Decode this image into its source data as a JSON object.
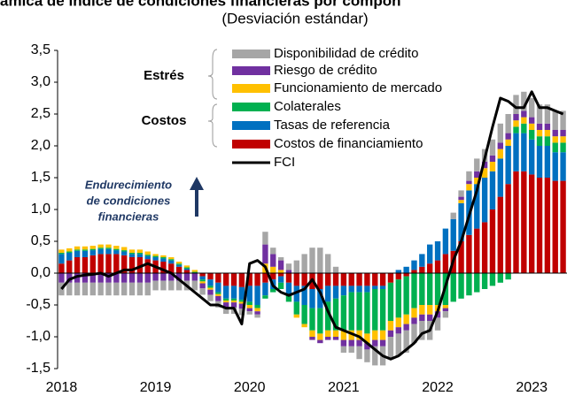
{
  "chart_data": {
    "type": "bar",
    "title": "ámica de índice de condiciones financieras por compon",
    "subtitle": "(Desviación estándar)",
    "group_labels": [
      "Estrés",
      "Costos"
    ],
    "annotation": [
      "Endurecimiento",
      "de condiciones",
      "financieras"
    ],
    "categories": [
      "2018",
      null,
      null,
      null,
      null,
      null,
      null,
      null,
      null,
      null,
      null,
      null,
      "2019",
      null,
      null,
      null,
      null,
      null,
      null,
      null,
      null,
      null,
      null,
      null,
      "2020",
      null,
      null,
      null,
      null,
      null,
      null,
      null,
      null,
      null,
      null,
      null,
      "2021",
      null,
      null,
      null,
      null,
      null,
      null,
      null,
      null,
      null,
      null,
      null,
      "2022",
      null,
      null,
      null,
      null,
      null,
      null,
      null,
      null,
      null,
      null,
      null,
      "2023",
      null,
      null,
      null,
      null
    ],
    "ylim": [
      -1.5,
      3.5
    ],
    "yticks": [
      {
        "value": -1.5,
        "label": "-1,5"
      },
      {
        "value": -1,
        "label": "-1,0"
      },
      {
        "value": -0.5,
        "label": "-0,5"
      },
      {
        "value": 0,
        "label": "0,0"
      },
      {
        "value": 0.5,
        "label": "0,5"
      },
      {
        "value": 1,
        "label": "1,0"
      },
      {
        "value": 1.5,
        "label": "1,5"
      },
      {
        "value": 2,
        "label": "2,0"
      },
      {
        "value": 2.5,
        "label": "2,5"
      },
      {
        "value": 3,
        "label": "3,0"
      },
      {
        "value": 3.5,
        "label": "3,5"
      }
    ],
    "series": [
      {
        "name": "Disponibilidad de crédito",
        "color": "#a6a6a6",
        "values": [
          -0.2,
          -0.2,
          -0.2,
          -0.2,
          -0.2,
          -0.2,
          -0.2,
          -0.2,
          -0.2,
          -0.2,
          -0.2,
          -0.2,
          -0.15,
          -0.15,
          -0.15,
          -0.15,
          -0.15,
          -0.15,
          -0.1,
          -0.1,
          -0.1,
          -0.1,
          -0.1,
          -0.1,
          -0.05,
          -0.05,
          0.2,
          0.1,
          0.05,
          0.1,
          0.2,
          0.3,
          0.4,
          0.4,
          0.3,
          0.1,
          -0.1,
          -0.1,
          -0.2,
          -0.2,
          -0.3,
          -0.3,
          -0.35,
          -0.35,
          -0.35,
          -0.3,
          -0.3,
          -0.3,
          -0.2,
          -0.1,
          0.1,
          0.1,
          0.15,
          0.2,
          0.2,
          0.25,
          0.3,
          0.3,
          0.3,
          0.3,
          0.3,
          0.3,
          0.3,
          0.3,
          0.3
        ]
      },
      {
        "name": "Riesgo de crédito",
        "color": "#7030a0",
        "values": [
          -0.15,
          -0.15,
          -0.15,
          -0.15,
          -0.15,
          -0.15,
          -0.15,
          -0.15,
          -0.15,
          -0.15,
          -0.15,
          -0.15,
          -0.12,
          -0.12,
          -0.12,
          -0.12,
          -0.12,
          -0.12,
          -0.08,
          -0.08,
          -0.08,
          -0.08,
          -0.08,
          -0.08,
          -0.05,
          -0.05,
          0.3,
          0.2,
          0.15,
          0.05,
          0,
          0,
          -0.05,
          -0.05,
          -0.05,
          -0.05,
          -0.1,
          -0.1,
          -0.1,
          -0.1,
          -0.1,
          -0.1,
          -0.1,
          -0.1,
          -0.1,
          -0.1,
          -0.1,
          -0.1,
          -0.1,
          -0.05,
          0,
          0.05,
          0.05,
          0.1,
          0.1,
          0.1,
          0.1,
          0.1,
          0.1,
          0.1,
          0.1,
          0.1,
          0.1,
          0.1,
          0.1
        ]
      },
      {
        "name": "Funcionamiento de mercado",
        "color": "#ffc000",
        "values": [
          0.05,
          0.05,
          0.05,
          0.05,
          0.05,
          0.05,
          0.05,
          0.05,
          0.05,
          0.05,
          0.05,
          0.05,
          0.03,
          0.03,
          0.03,
          0.03,
          0.03,
          0.03,
          -0.03,
          -0.03,
          -0.03,
          -0.03,
          -0.03,
          -0.03,
          -0.05,
          -0.05,
          0.15,
          0.1,
          0.05,
          0,
          -0.05,
          -0.05,
          -0.1,
          -0.1,
          -0.1,
          -0.1,
          -0.15,
          -0.15,
          -0.15,
          -0.15,
          -0.15,
          -0.15,
          -0.15,
          -0.15,
          -0.15,
          -0.15,
          -0.15,
          -0.15,
          -0.1,
          -0.05,
          0,
          0.05,
          0.1,
          0.1,
          0.15,
          0.15,
          0.15,
          0.1,
          0.1,
          0.1,
          0.1,
          0.1,
          0.1,
          0.1,
          0.1
        ]
      },
      {
        "name": "Colaterales",
        "color": "#00b050",
        "values": [
          0.02,
          0.02,
          0.02,
          0.02,
          0.02,
          0.02,
          0.02,
          0.02,
          0.02,
          0.02,
          0.02,
          0.02,
          0.02,
          0.02,
          0.02,
          0.02,
          0.02,
          0.02,
          -0.03,
          -0.03,
          -0.03,
          -0.03,
          -0.03,
          -0.03,
          -0.05,
          -0.05,
          -0.05,
          -0.05,
          -0.1,
          -0.1,
          -0.2,
          -0.3,
          -0.35,
          -0.4,
          -0.45,
          -0.5,
          -0.55,
          -0.6,
          -0.6,
          -0.65,
          -0.65,
          -0.65,
          -0.6,
          -0.6,
          -0.6,
          -0.55,
          -0.5,
          -0.5,
          -0.5,
          -0.5,
          -0.45,
          -0.4,
          -0.35,
          -0.3,
          -0.25,
          -0.2,
          -0.15,
          -0.1,
          0.1,
          0.15,
          0.15,
          0.15,
          0.15,
          0.15,
          0.15
        ]
      },
      {
        "name": "Tasas de referencia",
        "color": "#0070c0",
        "values": [
          0.15,
          0.12,
          0.1,
          0.1,
          0.08,
          0.08,
          0.08,
          0.06,
          0.06,
          0.05,
          0.05,
          0.05,
          0.05,
          0.05,
          0.05,
          0.03,
          0.02,
          0,
          -0.05,
          -0.1,
          -0.15,
          -0.2,
          -0.2,
          -0.2,
          -0.25,
          -0.3,
          -0.2,
          -0.15,
          -0.1,
          -0.2,
          -0.25,
          -0.3,
          -0.3,
          -0.3,
          -0.25,
          -0.2,
          -0.15,
          -0.1,
          -0.1,
          -0.1,
          -0.05,
          -0.05,
          0,
          0.05,
          0.1,
          0.15,
          0.2,
          0.3,
          0.3,
          0.4,
          0.5,
          0.6,
          0.7,
          0.7,
          0.7,
          0.6,
          0.6,
          0.6,
          0.6,
          0.6,
          0.55,
          0.5,
          0.5,
          0.45,
          0.45
        ]
      },
      {
        "name": "Costos de financiamiento",
        "color": "#c00000",
        "values": [
          0.15,
          0.2,
          0.25,
          0.25,
          0.28,
          0.3,
          0.3,
          0.3,
          0.28,
          0.25,
          0.25,
          0.22,
          0.2,
          0.18,
          0.15,
          0.1,
          0.05,
          0,
          -0.05,
          -0.1,
          -0.15,
          -0.2,
          -0.2,
          -0.22,
          -0.2,
          -0.2,
          -0.15,
          -0.1,
          -0.05,
          -0.15,
          -0.2,
          -0.2,
          -0.25,
          -0.25,
          -0.2,
          -0.2,
          -0.2,
          -0.2,
          -0.2,
          -0.2,
          -0.2,
          -0.2,
          -0.15,
          -0.1,
          -0.05,
          0.05,
          0.1,
          0.15,
          0.2,
          0.3,
          0.35,
          0.5,
          0.6,
          0.7,
          0.8,
          1.0,
          1.2,
          1.4,
          1.6,
          1.6,
          1.55,
          1.5,
          1.5,
          1.45,
          1.45
        ]
      },
      {
        "name": "FCI",
        "color": "#000000",
        "type": "line",
        "values": [
          -0.25,
          -0.1,
          -0.05,
          -0.03,
          -0.02,
          0,
          -0.05,
          0,
          0.05,
          0.05,
          0.1,
          0.15,
          0.1,
          0.05,
          0,
          -0.1,
          -0.2,
          -0.3,
          -0.4,
          -0.5,
          -0.5,
          -0.55,
          -0.55,
          -0.8,
          0.15,
          0.2,
          0.1,
          -0.2,
          -0.3,
          -0.35,
          -0.3,
          -0.25,
          -0.1,
          -0.3,
          -0.6,
          -0.85,
          -0.9,
          -0.95,
          -1.0,
          -1.1,
          -1.2,
          -1.3,
          -1.35,
          -1.3,
          -1.2,
          -1.1,
          -0.95,
          -0.9,
          -0.6,
          -0.2,
          0.2,
          0.5,
          0.9,
          1.3,
          1.8,
          2.3,
          2.75,
          2.7,
          2.6,
          2.6,
          2.85,
          2.6,
          2.6,
          2.55,
          2.5
        ]
      }
    ]
  }
}
